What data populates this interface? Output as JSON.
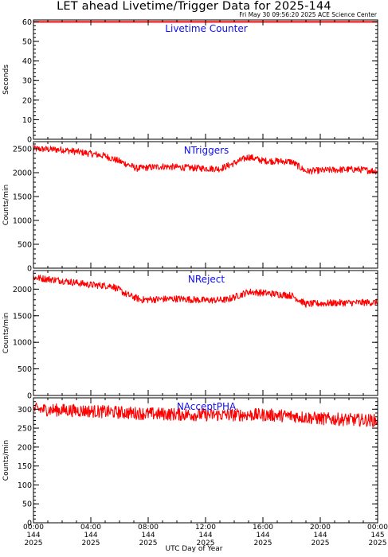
{
  "title": "LET ahead Livetime/Trigger Data for 2025-144",
  "subtitle": "Fri May 30 09:56:20 2025 ACE Science Center",
  "xlabel": "UTC Day of Year",
  "colors": {
    "data": "#ff0000",
    "panel_label": "#1010ee",
    "axis": "#000000",
    "background": "#ffffff"
  },
  "chart_data": [
    {
      "type": "line",
      "title": "Livetime Counter",
      "ylabel": "Seconds",
      "ylim": [
        0,
        61
      ],
      "yticks": [
        0,
        10,
        20,
        30,
        40,
        50,
        60
      ],
      "xlim": [
        0,
        24
      ],
      "series": [
        {
          "profile": [
            [
              0,
              60
            ],
            [
              24,
              60
            ]
          ],
          "noise": 0
        }
      ]
    },
    {
      "type": "line",
      "title": "NTriggers",
      "ylabel": "Counts/min",
      "ylim": [
        0,
        2650
      ],
      "yticks": [
        0,
        500,
        1000,
        1500,
        2000,
        2500
      ],
      "xlim": [
        0,
        24
      ],
      "series": [
        {
          "profile": [
            [
              0,
              2500
            ],
            [
              2,
              2480
            ],
            [
              3.5,
              2420
            ],
            [
              5,
              2350
            ],
            [
              6.5,
              2180
            ],
            [
              7.2,
              2090
            ],
            [
              9,
              2130
            ],
            [
              11,
              2100
            ],
            [
              13,
              2080
            ],
            [
              14,
              2200
            ],
            [
              15,
              2330
            ],
            [
              16,
              2250
            ],
            [
              18,
              2230
            ],
            [
              19,
              2030
            ],
            [
              21,
              2060
            ],
            [
              22.5,
              2070
            ],
            [
              24,
              2030
            ]
          ],
          "noise": 70
        }
      ]
    },
    {
      "type": "line",
      "title": "NReject",
      "ylabel": "Counts/min",
      "ylim": [
        0,
        2350
      ],
      "yticks": [
        0,
        500,
        1000,
        1500,
        2000
      ],
      "xlim": [
        0,
        24
      ],
      "series": [
        {
          "profile": [
            [
              0,
              2220
            ],
            [
              2,
              2160
            ],
            [
              4,
              2080
            ],
            [
              5.5,
              2060
            ],
            [
              6.5,
              1900
            ],
            [
              7.5,
              1800
            ],
            [
              10,
              1820
            ],
            [
              12,
              1790
            ],
            [
              13.5,
              1800
            ],
            [
              15,
              1950
            ],
            [
              16,
              1930
            ],
            [
              18,
              1880
            ],
            [
              19,
              1720
            ],
            [
              21,
              1740
            ],
            [
              24,
              1750
            ]
          ],
          "noise": 65
        }
      ]
    },
    {
      "type": "line",
      "title": "NAcceptPHA",
      "ylabel": "Counts/min",
      "ylim": [
        0,
        330
      ],
      "yticks": [
        0,
        50,
        100,
        150,
        200,
        250,
        300
      ],
      "xlim": [
        0,
        24
      ],
      "series": [
        {
          "profile": [
            [
              0,
              300
            ],
            [
              4,
              295
            ],
            [
              8,
              288
            ],
            [
              12,
              285
            ],
            [
              16,
              285
            ],
            [
              18,
              282
            ],
            [
              20,
              275
            ],
            [
              24,
              270
            ]
          ],
          "noise": 17
        }
      ]
    }
  ],
  "x_ticks": [
    {
      "value": 0,
      "time": "00:00",
      "doy": "144",
      "year": "2025"
    },
    {
      "value": 4,
      "time": "04:00",
      "doy": "144",
      "year": "2025"
    },
    {
      "value": 8,
      "time": "08:00",
      "doy": "144",
      "year": "2025"
    },
    {
      "value": 12,
      "time": "12:00",
      "doy": "144",
      "year": "2025"
    },
    {
      "value": 16,
      "time": "16:00",
      "doy": "144",
      "year": "2025"
    },
    {
      "value": 20,
      "time": "20:00",
      "doy": "144",
      "year": "2025"
    },
    {
      "value": 24,
      "time": "00:00",
      "doy": "145",
      "year": "2025"
    }
  ]
}
